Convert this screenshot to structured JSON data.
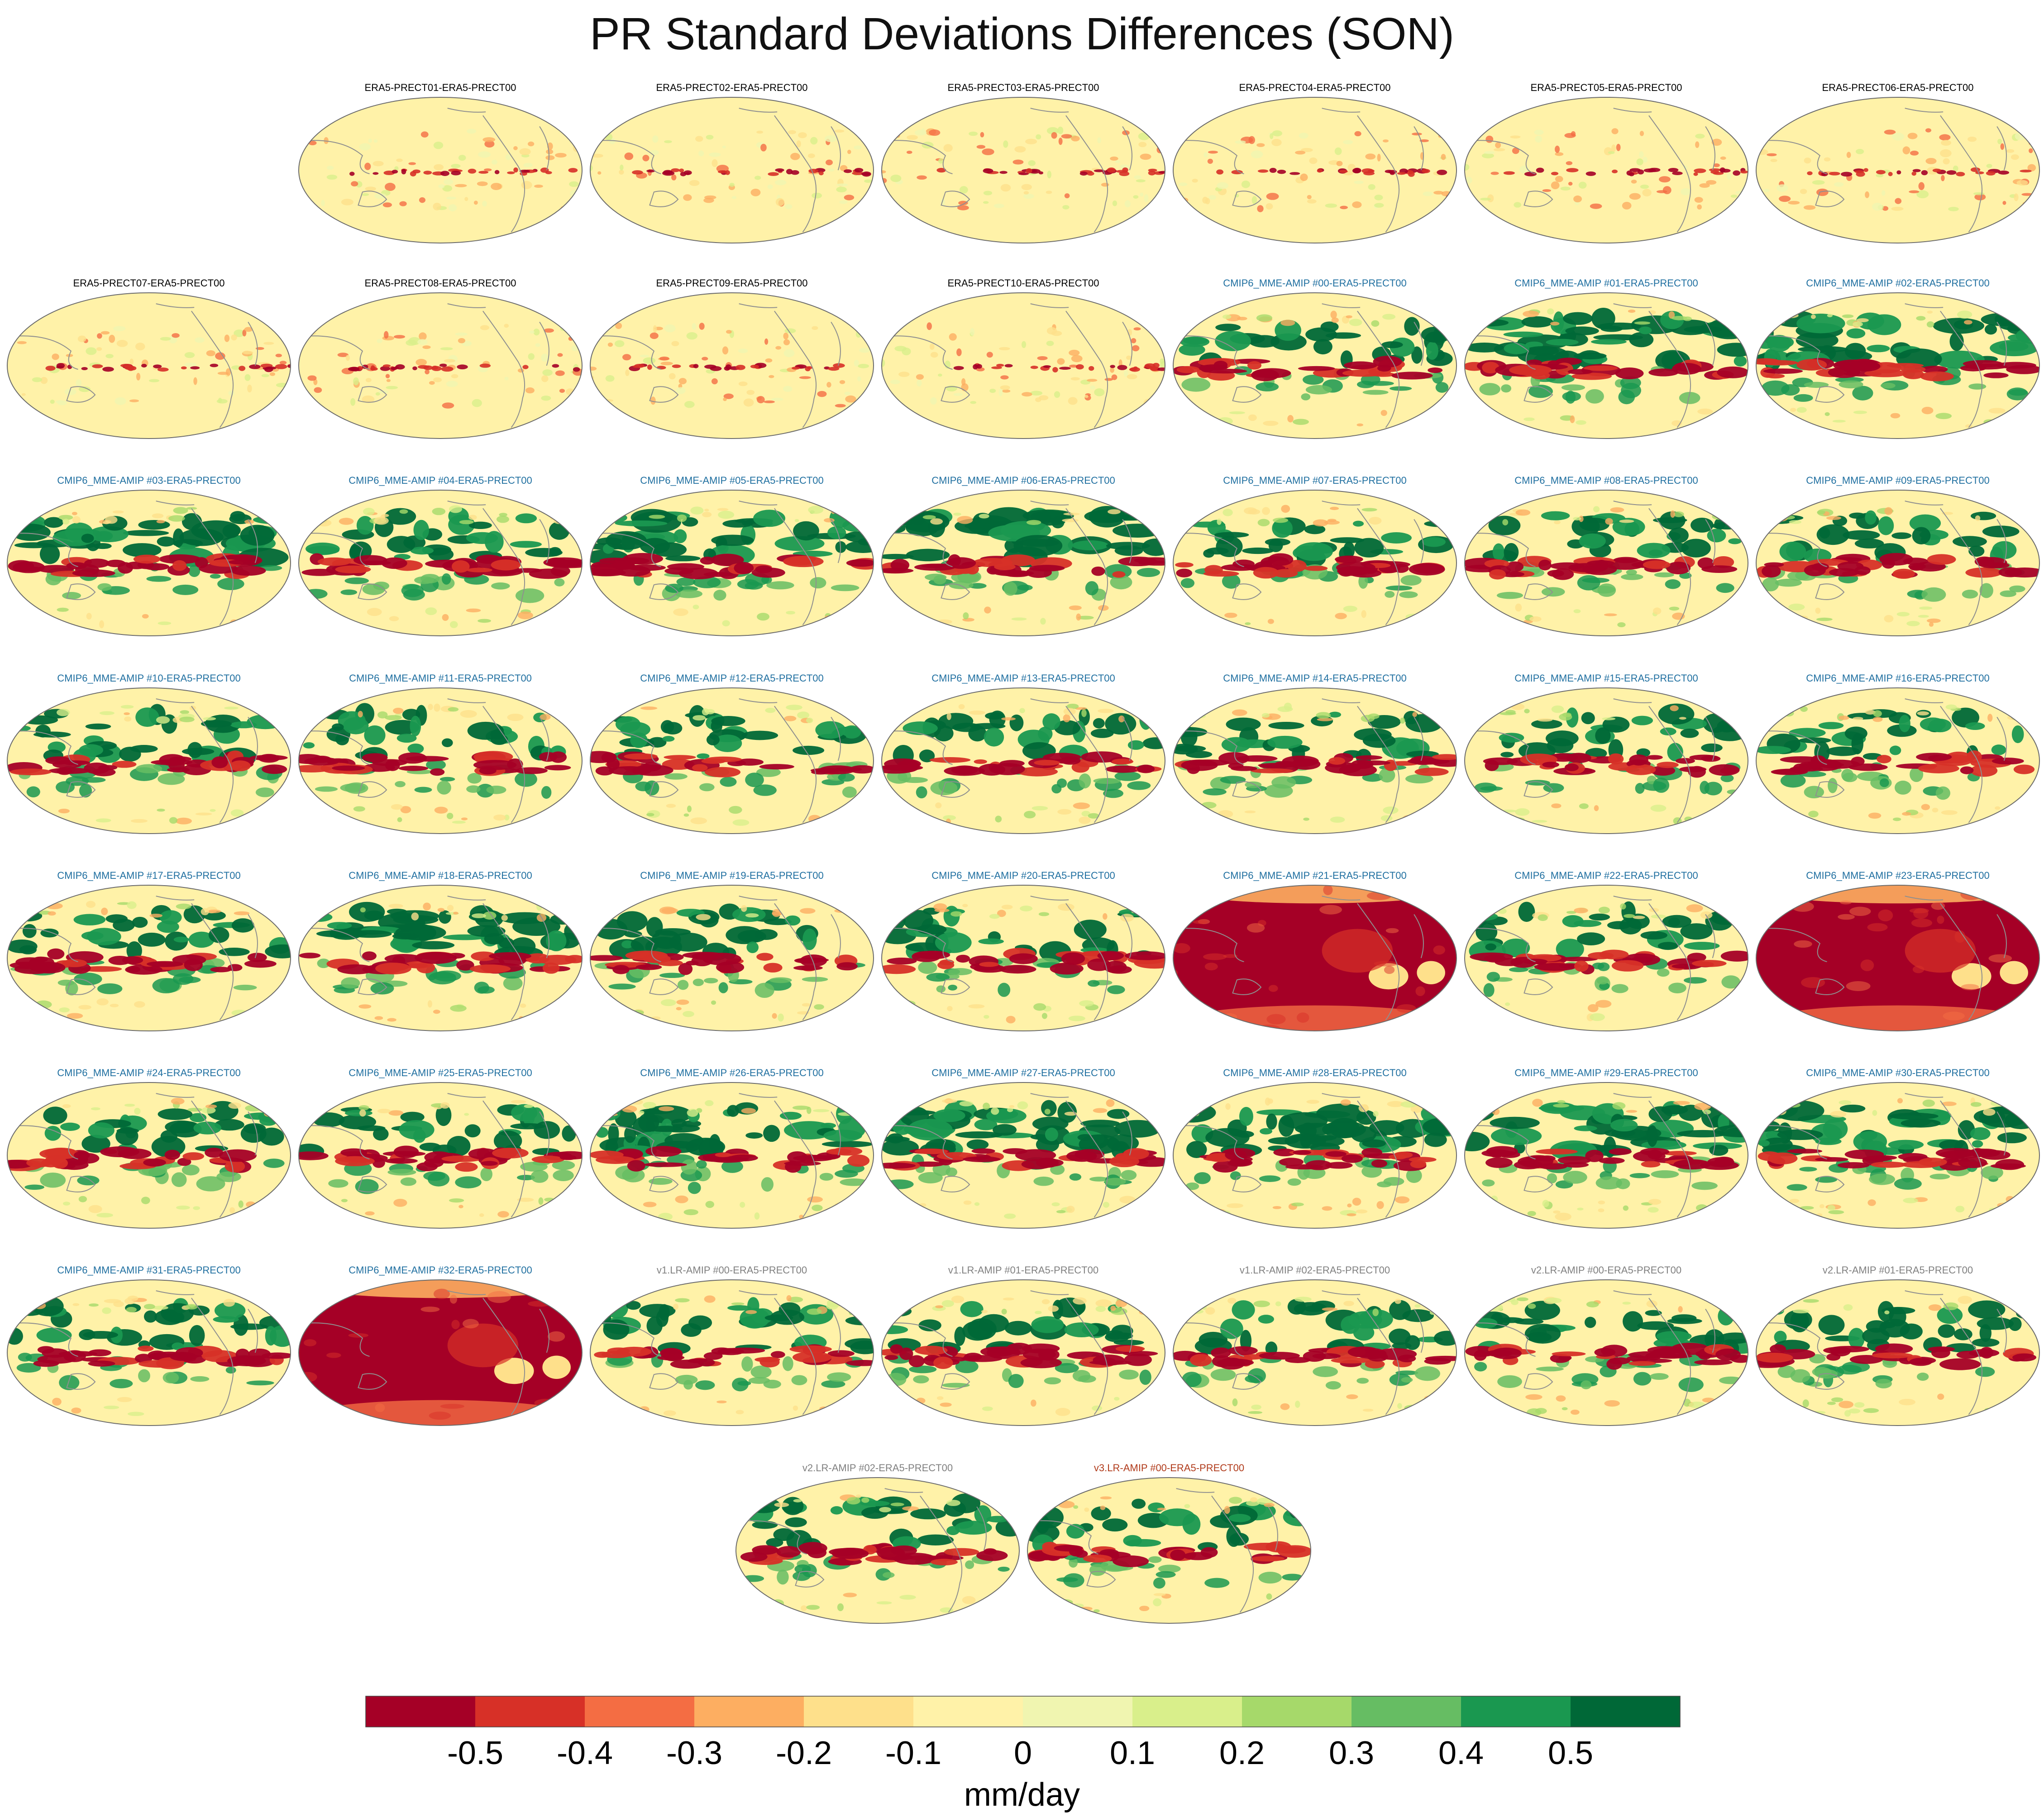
{
  "title": "PR Standard Deviations Differences (SON)",
  "colors": {
    "era5_label": "#000000",
    "cmip_label": "#1f6fa0",
    "v1v2_label": "#7f7f7f",
    "v3_label": "#b03a1a",
    "map_edge": "#6b6b6b",
    "coast": "#8f8f8f"
  },
  "chart_data": {
    "type": "heatmap",
    "projection": "Robinson (global, Pacific-centered)",
    "season": "SON",
    "variable": "PR",
    "reference": "ERA5-PRECT00",
    "units": "mm/day",
    "colorbar": {
      "label": "mm/day",
      "ticks": [
        -0.5,
        -0.4,
        -0.3,
        -0.2,
        -0.1,
        0,
        0.1,
        0.2,
        0.3,
        0.4,
        0.5
      ],
      "tick_labels": [
        "-0.5",
        "-0.4",
        "-0.3",
        "-0.2",
        "-0.1",
        "0",
        "0.1",
        "0.2",
        "0.3",
        "0.4",
        "0.5"
      ],
      "colors": [
        "#a50026",
        "#d73027",
        "#f46d43",
        "#fdae61",
        "#fee08b",
        "#fff2a8",
        "#f0f5b0",
        "#d9ef8b",
        "#a6d96a",
        "#66bd63",
        "#1a9850",
        "#006837"
      ]
    },
    "panels": [
      {
        "label": "ERA5-PRECT01-ERA5-PRECT00",
        "group": "era5",
        "pattern": "weak"
      },
      {
        "label": "ERA5-PRECT02-ERA5-PRECT00",
        "group": "era5",
        "pattern": "weak"
      },
      {
        "label": "ERA5-PRECT03-ERA5-PRECT00",
        "group": "era5",
        "pattern": "weak"
      },
      {
        "label": "ERA5-PRECT04-ERA5-PRECT00",
        "group": "era5",
        "pattern": "weak"
      },
      {
        "label": "ERA5-PRECT05-ERA5-PRECT00",
        "group": "era5",
        "pattern": "weak"
      },
      {
        "label": "ERA5-PRECT06-ERA5-PRECT00",
        "group": "era5",
        "pattern": "weak"
      },
      {
        "label": "ERA5-PRECT07-ERA5-PRECT00",
        "group": "era5",
        "pattern": "weak"
      },
      {
        "label": "ERA5-PRECT08-ERA5-PRECT00",
        "group": "era5",
        "pattern": "weak"
      },
      {
        "label": "ERA5-PRECT09-ERA5-PRECT00",
        "group": "era5",
        "pattern": "weak"
      },
      {
        "label": "ERA5-PRECT10-ERA5-PRECT00",
        "group": "era5",
        "pattern": "weak"
      },
      {
        "label": "CMIP6_MME-AMIP  #00-ERA5-PRECT00",
        "group": "cmip",
        "pattern": "mixed"
      },
      {
        "label": "CMIP6_MME-AMIP  #01-ERA5-PRECT00",
        "group": "cmip",
        "pattern": "strong"
      },
      {
        "label": "CMIP6_MME-AMIP  #02-ERA5-PRECT00",
        "group": "cmip",
        "pattern": "strong"
      },
      {
        "label": "CMIP6_MME-AMIP  #03-ERA5-PRECT00",
        "group": "cmip",
        "pattern": "strong"
      },
      {
        "label": "CMIP6_MME-AMIP  #04-ERA5-PRECT00",
        "group": "cmip",
        "pattern": "mixed"
      },
      {
        "label": "CMIP6_MME-AMIP  #05-ERA5-PRECT00",
        "group": "cmip",
        "pattern": "strong"
      },
      {
        "label": "CMIP6_MME-AMIP  #06-ERA5-PRECT00",
        "group": "cmip",
        "pattern": "strong"
      },
      {
        "label": "CMIP6_MME-AMIP  #07-ERA5-PRECT00",
        "group": "cmip",
        "pattern": "mixed"
      },
      {
        "label": "CMIP6_MME-AMIP  #08-ERA5-PRECT00",
        "group": "cmip",
        "pattern": "mixed"
      },
      {
        "label": "CMIP6_MME-AMIP  #09-ERA5-PRECT00",
        "group": "cmip",
        "pattern": "mixed"
      },
      {
        "label": "CMIP6_MME-AMIP  #10-ERA5-PRECT00",
        "group": "cmip",
        "pattern": "mixed"
      },
      {
        "label": "CMIP6_MME-AMIP  #11-ERA5-PRECT00",
        "group": "cmip",
        "pattern": "mixed"
      },
      {
        "label": "CMIP6_MME-AMIP  #12-ERA5-PRECT00",
        "group": "cmip",
        "pattern": "mixed"
      },
      {
        "label": "CMIP6_MME-AMIP  #13-ERA5-PRECT00",
        "group": "cmip",
        "pattern": "mixed"
      },
      {
        "label": "CMIP6_MME-AMIP  #14-ERA5-PRECT00",
        "group": "cmip",
        "pattern": "mixed"
      },
      {
        "label": "CMIP6_MME-AMIP  #15-ERA5-PRECT00",
        "group": "cmip",
        "pattern": "mixed"
      },
      {
        "label": "CMIP6_MME-AMIP  #16-ERA5-PRECT00",
        "group": "cmip",
        "pattern": "mixed"
      },
      {
        "label": "CMIP6_MME-AMIP  #17-ERA5-PRECT00",
        "group": "cmip",
        "pattern": "mixed"
      },
      {
        "label": "CMIP6_MME-AMIP  #18-ERA5-PRECT00",
        "group": "cmip",
        "pattern": "strong"
      },
      {
        "label": "CMIP6_MME-AMIP  #19-ERA5-PRECT00",
        "group": "cmip",
        "pattern": "mixed"
      },
      {
        "label": "CMIP6_MME-AMIP  #20-ERA5-PRECT00",
        "group": "cmip",
        "pattern": "mixed"
      },
      {
        "label": "CMIP6_MME-AMIP  #21-ERA5-PRECT00",
        "group": "cmip",
        "pattern": "red"
      },
      {
        "label": "CMIP6_MME-AMIP  #22-ERA5-PRECT00",
        "group": "cmip",
        "pattern": "mixed"
      },
      {
        "label": "CMIP6_MME-AMIP  #23-ERA5-PRECT00",
        "group": "cmip",
        "pattern": "red"
      },
      {
        "label": "CMIP6_MME-AMIP  #24-ERA5-PRECT00",
        "group": "cmip",
        "pattern": "mixed"
      },
      {
        "label": "CMIP6_MME-AMIP  #25-ERA5-PRECT00",
        "group": "cmip",
        "pattern": "mixed"
      },
      {
        "label": "CMIP6_MME-AMIP  #26-ERA5-PRECT00",
        "group": "cmip",
        "pattern": "strong"
      },
      {
        "label": "CMIP6_MME-AMIP  #27-ERA5-PRECT00",
        "group": "cmip",
        "pattern": "strong"
      },
      {
        "label": "CMIP6_MME-AMIP  #28-ERA5-PRECT00",
        "group": "cmip",
        "pattern": "strong"
      },
      {
        "label": "CMIP6_MME-AMIP  #29-ERA5-PRECT00",
        "group": "cmip",
        "pattern": "strong"
      },
      {
        "label": "CMIP6_MME-AMIP  #30-ERA5-PRECT00",
        "group": "cmip",
        "pattern": "strong"
      },
      {
        "label": "CMIP6_MME-AMIP  #31-ERA5-PRECT00",
        "group": "cmip",
        "pattern": "mixed"
      },
      {
        "label": "CMIP6_MME-AMIP  #32-ERA5-PRECT00",
        "group": "cmip",
        "pattern": "red"
      },
      {
        "label": "v1.LR-AMIP  #00-ERA5-PRECT00",
        "group": "v1v2",
        "pattern": "mixed"
      },
      {
        "label": "v1.LR-AMIP  #01-ERA5-PRECT00",
        "group": "v1v2",
        "pattern": "mixed"
      },
      {
        "label": "v1.LR-AMIP  #02-ERA5-PRECT00",
        "group": "v1v2",
        "pattern": "mixed"
      },
      {
        "label": "v2.LR-AMIP  #00-ERA5-PRECT00",
        "group": "v1v2",
        "pattern": "mixed"
      },
      {
        "label": "v2.LR-AMIP  #01-ERA5-PRECT00",
        "group": "v1v2",
        "pattern": "mixed"
      },
      {
        "label": "v2.LR-AMIP  #02-ERA5-PRECT00",
        "group": "v1v2",
        "pattern": "mixed"
      },
      {
        "label": "v3.LR-AMIP  #00-ERA5-PRECT00",
        "group": "v3",
        "pattern": "mixed"
      }
    ]
  }
}
